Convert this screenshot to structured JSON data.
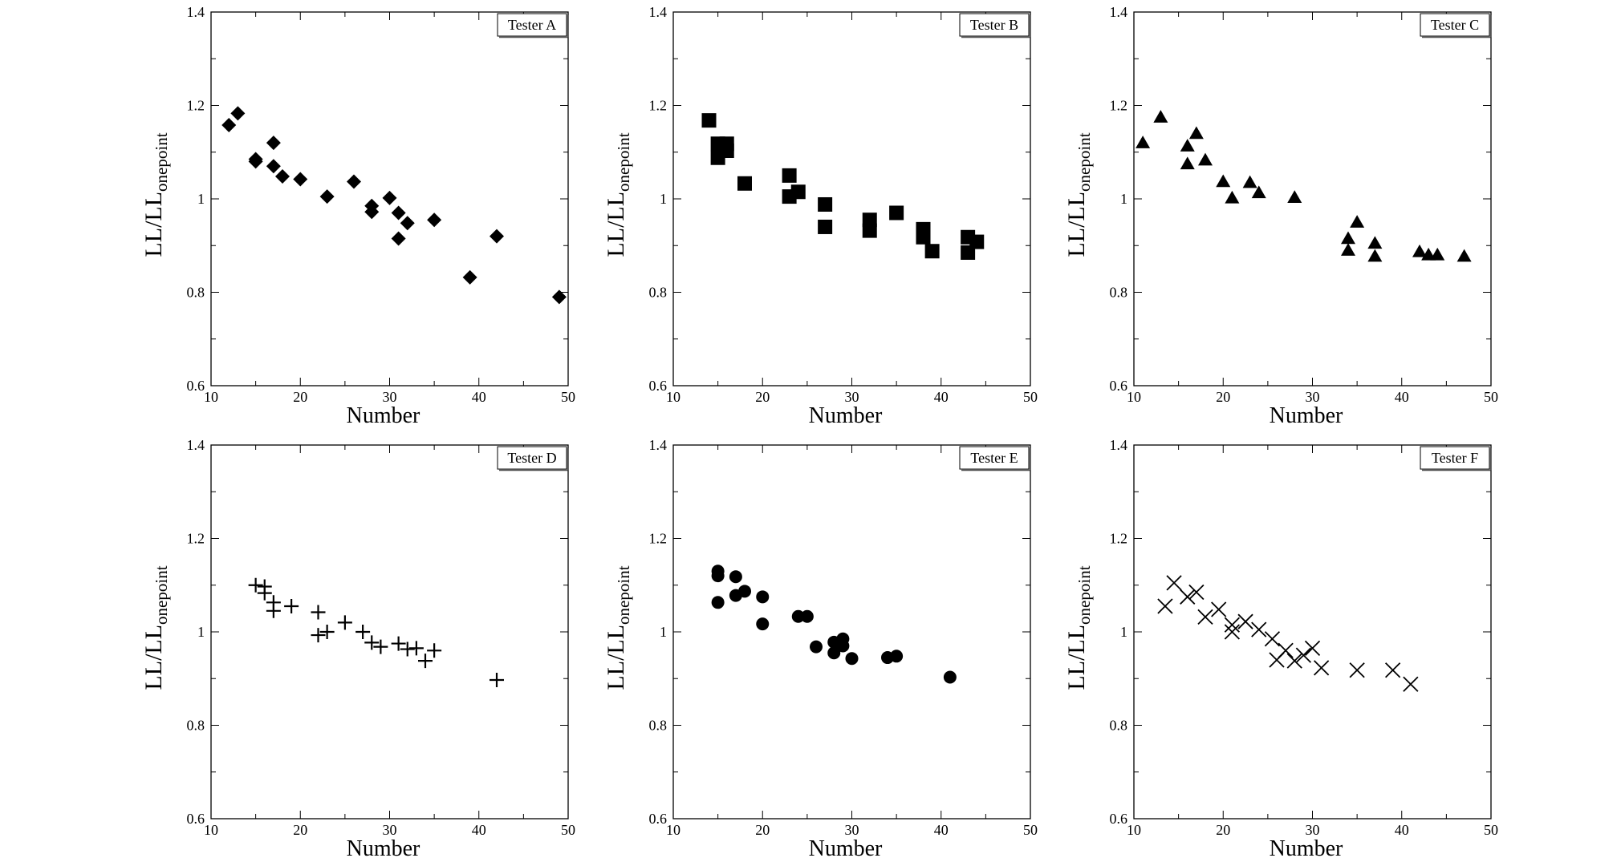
{
  "chart_data": [
    {
      "type": "scatter",
      "legend": "Tester A",
      "marker": "diamond",
      "xlabel": "Number",
      "ylabel": "LL/LL",
      "ylabel_subscript": "onepoint",
      "xlim": [
        10,
        50
      ],
      "ylim": [
        0.6,
        1.4
      ],
      "x_ticks": [
        "10",
        "20",
        "30",
        "40",
        "50"
      ],
      "y_ticks": [
        "0.6",
        "0.8",
        "1",
        "1.2",
        "1.4"
      ],
      "points": [
        [
          12,
          1.158
        ],
        [
          13,
          1.183
        ],
        [
          15,
          1.085
        ],
        [
          15,
          1.08
        ],
        [
          17,
          1.12
        ],
        [
          17,
          1.07
        ],
        [
          18,
          1.048
        ],
        [
          20,
          1.042
        ],
        [
          23,
          1.005
        ],
        [
          26,
          1.037
        ],
        [
          28,
          0.985
        ],
        [
          28,
          0.972
        ],
        [
          30,
          1.002
        ],
        [
          31,
          0.97
        ],
        [
          31,
          0.915
        ],
        [
          32,
          0.948
        ],
        [
          35,
          0.955
        ],
        [
          39,
          0.832
        ],
        [
          42,
          0.92
        ],
        [
          49,
          0.79
        ]
      ]
    },
    {
      "type": "scatter",
      "legend": "Tester B",
      "marker": "square",
      "xlabel": "Number",
      "ylabel": "LL/LL",
      "ylabel_subscript": "onepoint",
      "xlim": [
        10,
        50
      ],
      "ylim": [
        0.6,
        1.4
      ],
      "x_ticks": [
        "10",
        "20",
        "30",
        "40",
        "50"
      ],
      "y_ticks": [
        "0.6",
        "0.8",
        "1",
        "1.2",
        "1.4"
      ],
      "points": [
        [
          14,
          1.168
        ],
        [
          15,
          1.118
        ],
        [
          15,
          1.088
        ],
        [
          16,
          1.118
        ],
        [
          16,
          1.103
        ],
        [
          18,
          1.033
        ],
        [
          23,
          1.05
        ],
        [
          23,
          1.005
        ],
        [
          24,
          1.015
        ],
        [
          27,
          0.988
        ],
        [
          27,
          0.94
        ],
        [
          32,
          0.955
        ],
        [
          32,
          0.932
        ],
        [
          35,
          0.97
        ],
        [
          38,
          0.935
        ],
        [
          38,
          0.918
        ],
        [
          39,
          0.888
        ],
        [
          43,
          0.918
        ],
        [
          43,
          0.885
        ],
        [
          44,
          0.908
        ]
      ]
    },
    {
      "type": "scatter",
      "legend": "Tester C",
      "marker": "triangle",
      "xlabel": "Number",
      "ylabel": "LL/LL",
      "ylabel_subscript": "onepoint",
      "xlim": [
        10,
        50
      ],
      "ylim": [
        0.6,
        1.4
      ],
      "x_ticks": [
        "10",
        "20",
        "30",
        "40",
        "50"
      ],
      "y_ticks": [
        "0.6",
        "0.8",
        "1",
        "1.2",
        "1.4"
      ],
      "points": [
        [
          11,
          1.12
        ],
        [
          13,
          1.175
        ],
        [
          16,
          1.113
        ],
        [
          16,
          1.075
        ],
        [
          17,
          1.14
        ],
        [
          18,
          1.083
        ],
        [
          20,
          1.037
        ],
        [
          21,
          1.002
        ],
        [
          23,
          1.035
        ],
        [
          24,
          1.013
        ],
        [
          28,
          1.003
        ],
        [
          34,
          0.915
        ],
        [
          34,
          0.89
        ],
        [
          35,
          0.95
        ],
        [
          37,
          0.905
        ],
        [
          37,
          0.877
        ],
        [
          42,
          0.887
        ],
        [
          43,
          0.88
        ],
        [
          44,
          0.88
        ],
        [
          47,
          0.877
        ]
      ]
    },
    {
      "type": "scatter",
      "legend": "Tester D",
      "marker": "plus",
      "xlabel": "Number",
      "ylabel": "LL/LL",
      "ylabel_subscript": "onepoint",
      "xlim": [
        10,
        50
      ],
      "ylim": [
        0.6,
        1.4
      ],
      "x_ticks": [
        "10",
        "20",
        "30",
        "40",
        "50"
      ],
      "y_ticks": [
        "0.6",
        "0.8",
        "1",
        "1.2",
        "1.4"
      ],
      "points": [
        [
          15,
          1.1
        ],
        [
          16,
          1.097
        ],
        [
          16,
          1.083
        ],
        [
          17,
          1.063
        ],
        [
          17,
          1.045
        ],
        [
          19,
          1.055
        ],
        [
          22,
          1.042
        ],
        [
          22,
          0.993
        ],
        [
          23,
          1.0
        ],
        [
          25,
          1.02
        ],
        [
          27,
          1.0
        ],
        [
          28,
          0.977
        ],
        [
          29,
          0.968
        ],
        [
          31,
          0.975
        ],
        [
          32,
          0.963
        ],
        [
          33,
          0.965
        ],
        [
          34,
          0.938
        ],
        [
          35,
          0.96
        ],
        [
          42,
          0.897
        ]
      ]
    },
    {
      "type": "scatter",
      "legend": "Tester E",
      "marker": "circle",
      "xlabel": "Number",
      "ylabel": "LL/LL",
      "ylabel_subscript": "onepoint",
      "xlim": [
        10,
        50
      ],
      "ylim": [
        0.6,
        1.4
      ],
      "x_ticks": [
        "10",
        "20",
        "30",
        "40",
        "50"
      ],
      "y_ticks": [
        "0.6",
        "0.8",
        "1",
        "1.2",
        "1.4"
      ],
      "points": [
        [
          15,
          1.13
        ],
        [
          15,
          1.12
        ],
        [
          15,
          1.063
        ],
        [
          17,
          1.118
        ],
        [
          17,
          1.078
        ],
        [
          18,
          1.087
        ],
        [
          20,
          1.075
        ],
        [
          20,
          1.017
        ],
        [
          24,
          1.033
        ],
        [
          25,
          1.033
        ],
        [
          26,
          0.968
        ],
        [
          28,
          0.978
        ],
        [
          28,
          0.955
        ],
        [
          29,
          0.985
        ],
        [
          29,
          0.97
        ],
        [
          30,
          0.943
        ],
        [
          34,
          0.945
        ],
        [
          35,
          0.948
        ],
        [
          41,
          0.903
        ]
      ]
    },
    {
      "type": "scatter",
      "legend": "Tester F",
      "marker": "cross",
      "xlabel": "Number",
      "ylabel": "LL/LL",
      "ylabel_subscript": "onepoint",
      "xlim": [
        10,
        50
      ],
      "ylim": [
        0.6,
        1.4
      ],
      "x_ticks": [
        "10",
        "20",
        "30",
        "40",
        "50"
      ],
      "y_ticks": [
        "0.6",
        "0.8",
        "1",
        "1.2",
        "1.4"
      ],
      "points": [
        [
          13.5,
          1.055
        ],
        [
          14.5,
          1.105
        ],
        [
          16,
          1.075
        ],
        [
          17,
          1.085
        ],
        [
          18,
          1.032
        ],
        [
          19.5,
          1.048
        ],
        [
          21,
          1.0
        ],
        [
          21,
          1.015
        ],
        [
          22.5,
          1.022
        ],
        [
          24,
          1.005
        ],
        [
          25.5,
          0.985
        ],
        [
          26,
          0.94
        ],
        [
          27,
          0.96
        ],
        [
          28,
          0.938
        ],
        [
          29,
          0.95
        ],
        [
          30,
          0.965
        ],
        [
          31,
          0.923
        ],
        [
          35,
          0.918
        ],
        [
          39,
          0.918
        ],
        [
          41,
          0.888
        ]
      ]
    }
  ]
}
